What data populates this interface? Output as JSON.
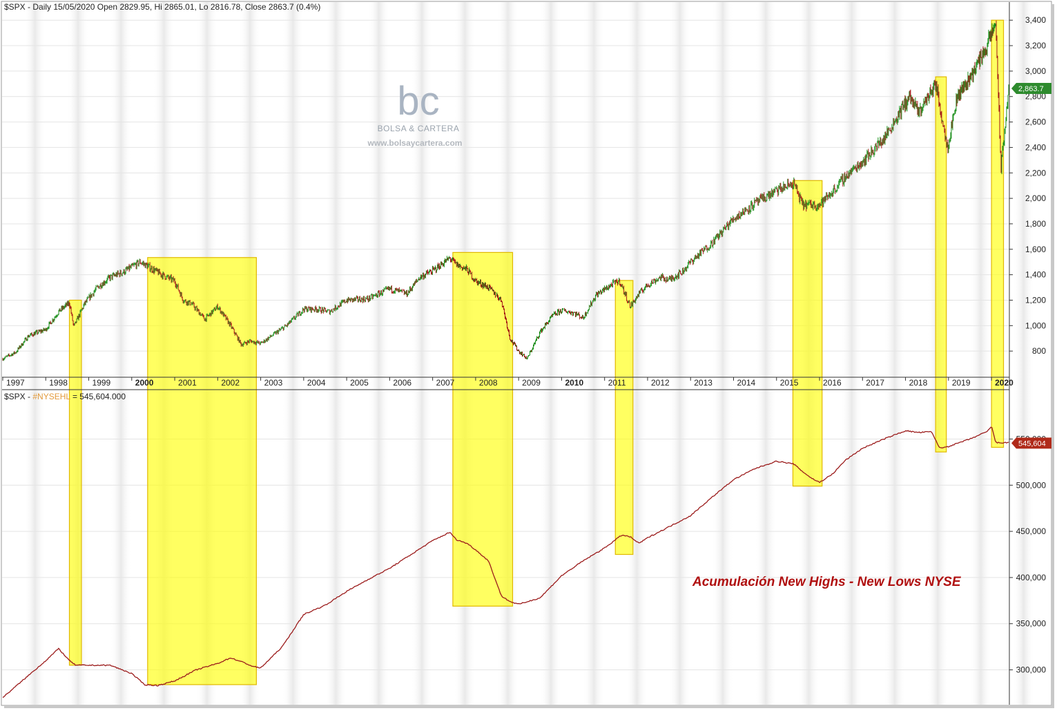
{
  "chart_data": [
    {
      "type": "line",
      "header": "$SPX - Daily 15/05/2020 Open 2829.95, Hi 2865.01, Lo 2816.78, Close 2863.7 (0.4%)",
      "ylim": [
        600,
        3450
      ],
      "y_ticks": [
        800,
        1000,
        1200,
        1400,
        1600,
        1800,
        2000,
        2200,
        2400,
        2600,
        2800,
        3000,
        3200,
        3400
      ],
      "y_tick_labels": [
        "800",
        "1,000",
        "1,200",
        "1,400",
        "1,600",
        "1,800",
        "2,000",
        "2,200",
        "2,400",
        "2,600",
        "2,800",
        "3,000",
        "3,200",
        "3,400"
      ],
      "last_value": 2863.7,
      "last_value_label": "2,863.7",
      "x_year_labels": [
        "1997",
        "1998",
        "1999",
        "2000",
        "2001",
        "2002",
        "2003",
        "2004",
        "2005",
        "2006",
        "2007",
        "2008",
        "2009",
        "2010",
        "2011",
        "2012",
        "2013",
        "2014",
        "2015",
        "2016",
        "2017",
        "2018",
        "2019",
        "2020"
      ],
      "bold_years": [
        "2000",
        "2010",
        "2020"
      ],
      "series": [
        {
          "x": [
            1997.0,
            1997.3,
            1997.6,
            1998.0,
            1998.3,
            1998.55,
            1998.65,
            1998.9,
            1999.2,
            1999.5,
            1999.8,
            2000.0,
            2000.2,
            2000.4,
            2000.7,
            2001.0,
            2001.2,
            2001.4,
            2001.7,
            2002.0,
            2002.3,
            2002.55,
            2002.75,
            2003.0,
            2003.3,
            2003.6,
            2004.0,
            2004.3,
            2004.6,
            2005.0,
            2005.5,
            2006.0,
            2006.4,
            2006.7,
            2007.0,
            2007.4,
            2007.55,
            2007.8,
            2008.0,
            2008.3,
            2008.6,
            2008.8,
            2009.0,
            2009.2,
            2009.5,
            2009.8,
            2010.0,
            2010.3,
            2010.5,
            2010.8,
            2011.2,
            2011.35,
            2011.6,
            2011.8,
            2012.0,
            2012.3,
            2012.5,
            2012.8,
            2013.0,
            2013.5,
            2014.0,
            2014.5,
            2015.0,
            2015.4,
            2015.6,
            2015.8,
            2016.0,
            2016.3,
            2016.6,
            2017.0,
            2017.5,
            2018.0,
            2018.1,
            2018.3,
            2018.7,
            2018.98,
            2019.2,
            2019.5,
            2019.9,
            2020.1,
            2020.22,
            2020.4
          ],
          "y": [
            740,
            790,
            920,
            970,
            1110,
            1180,
            990,
            1170,
            1300,
            1380,
            1420,
            1460,
            1500,
            1460,
            1400,
            1350,
            1200,
            1170,
            1050,
            1150,
            1000,
            850,
            880,
            860,
            930,
            1000,
            1130,
            1130,
            1110,
            1200,
            1210,
            1290,
            1250,
            1380,
            1430,
            1530,
            1480,
            1440,
            1350,
            1300,
            1200,
            900,
            800,
            740,
            950,
            1080,
            1120,
            1100,
            1060,
            1240,
            1330,
            1350,
            1150,
            1250,
            1320,
            1380,
            1360,
            1420,
            1500,
            1650,
            1840,
            1960,
            2060,
            2120,
            1950,
            1950,
            1950,
            2050,
            2170,
            2290,
            2470,
            2750,
            2800,
            2670,
            2900,
            2400,
            2800,
            2950,
            3200,
            3380,
            2230,
            2864
          ]
        }
      ]
    },
    {
      "type": "line",
      "header_prefix": "$SPX - ",
      "header_indicator": "#NYSEHL",
      "header_suffix": " = 545,604.000",
      "annotation": "Acumulación New Highs - New Lows NYSE",
      "ylim": [
        263000,
        590000
      ],
      "y_ticks": [
        300000,
        350000,
        400000,
        450000,
        500000,
        550000
      ],
      "y_tick_labels": [
        "300,000",
        "350,000",
        "400,000",
        "450,000",
        "500,000",
        "550,000"
      ],
      "last_value": 545604,
      "last_value_label": "545,604",
      "series": [
        {
          "x": [
            1997.0,
            1997.5,
            1998.0,
            1998.3,
            1998.55,
            1998.7,
            1999.0,
            1999.5,
            2000.0,
            2000.3,
            2000.6,
            2001.0,
            2001.5,
            2002.0,
            2002.3,
            2002.6,
            2002.8,
            2003.0,
            2003.5,
            2004.0,
            2004.5,
            2005.0,
            2005.5,
            2006.0,
            2006.5,
            2007.0,
            2007.4,
            2007.55,
            2007.8,
            2008.0,
            2008.3,
            2008.6,
            2008.8,
            2009.0,
            2009.5,
            2010.0,
            2010.5,
            2011.0,
            2011.4,
            2011.6,
            2011.8,
            2012.0,
            2012.5,
            2013.0,
            2013.5,
            2014.0,
            2014.5,
            2015.0,
            2015.4,
            2015.6,
            2015.8,
            2016.0,
            2016.3,
            2016.6,
            2017.0,
            2017.5,
            2018.0,
            2018.3,
            2018.6,
            2018.8,
            2019.0,
            2019.5,
            2019.9,
            2020.0,
            2020.1,
            2020.4
          ],
          "y": [
            270000,
            290000,
            310000,
            323000,
            310000,
            305000,
            305000,
            305000,
            296000,
            284000,
            283000,
            288000,
            300000,
            307000,
            313000,
            308000,
            304000,
            302000,
            325000,
            360000,
            370000,
            385000,
            398000,
            410000,
            425000,
            440000,
            449000,
            441000,
            437000,
            430000,
            418000,
            380000,
            374000,
            371000,
            378000,
            402000,
            418000,
            432000,
            446000,
            444000,
            437000,
            443000,
            455000,
            467000,
            487000,
            506000,
            518000,
            526000,
            523000,
            515000,
            508000,
            503000,
            512000,
            527000,
            540000,
            550000,
            559000,
            557000,
            558000,
            540000,
            542000,
            550000,
            558000,
            564000,
            546000,
            546000
          ]
        }
      ]
    }
  ],
  "watermark": {
    "logo_text": "bc",
    "brand": "BOLSA & CARTERA",
    "url": "www.bolsaycartera.com"
  },
  "colors": {
    "price_up": "#1a8f1a",
    "price_down": "#a31515",
    "indicator_line": "#9b1b1b",
    "highlight_fill": "#ffff00",
    "highlight_stroke": "#e0b800",
    "label_green": "#2e8b2e",
    "label_red": "#b02a1a",
    "annotation": "#b01010",
    "indicator_name": "#e39a3c"
  },
  "highlights": [
    {
      "x0": 1998.55,
      "x1": 1998.83,
      "top": 1200,
      "bottom": 305000
    },
    {
      "x0": 2000.37,
      "x1": 2002.9,
      "top": 1535,
      "bottom": 284000
    },
    {
      "x0": 2007.47,
      "x1": 2008.86,
      "top": 1575,
      "bottom": 369000
    },
    {
      "x0": 2011.25,
      "x1": 2011.66,
      "top": 1355,
      "bottom": 425000
    },
    {
      "x0": 2015.38,
      "x1": 2016.06,
      "top": 2140,
      "bottom": 499000
    },
    {
      "x0": 2018.7,
      "x1": 2018.95,
      "top": 2955,
      "bottom": 536000
    },
    {
      "x0": 2020.0,
      "x1": 2020.28,
      "top": 3400,
      "bottom": 541000
    }
  ]
}
